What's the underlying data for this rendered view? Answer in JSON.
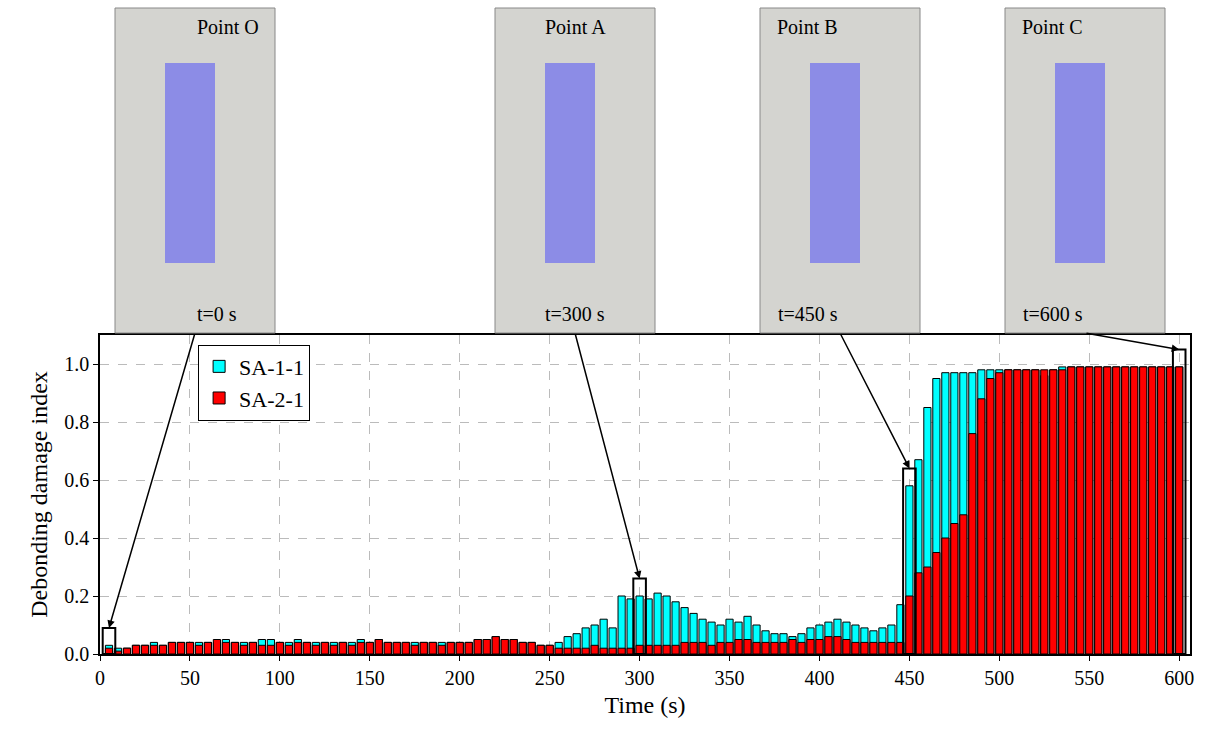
{
  "chart_data": {
    "type": "bar",
    "x_label": "Time (s)",
    "y_label": "Debonding damage index",
    "xlim": [
      0,
      606
    ],
    "ylim": [
      0,
      1.1
    ],
    "xticks": [
      0,
      50,
      100,
      150,
      200,
      250,
      300,
      350,
      400,
      450,
      500,
      550,
      600
    ],
    "yticks": [
      {
        "value": 0,
        "label": "0.0"
      },
      {
        "value": 0.2,
        "label": "0.2"
      },
      {
        "value": 0.4,
        "label": "0.4"
      },
      {
        "value": 0.6,
        "label": "0.6"
      },
      {
        "value": 0.8,
        "label": "0.8"
      },
      {
        "value": 1.0,
        "label": "1.0"
      }
    ],
    "grid": true,
    "legend": "upper left",
    "stacked": false,
    "x": [
      5,
      10,
      15,
      20,
      25,
      30,
      35,
      40,
      45,
      50,
      55,
      60,
      65,
      70,
      75,
      80,
      85,
      90,
      95,
      100,
      105,
      110,
      115,
      120,
      125,
      130,
      135,
      140,
      145,
      150,
      155,
      160,
      165,
      170,
      175,
      180,
      185,
      190,
      195,
      200,
      205,
      210,
      215,
      220,
      225,
      230,
      235,
      240,
      245,
      250,
      255,
      260,
      265,
      270,
      275,
      280,
      285,
      290,
      295,
      300,
      305,
      310,
      315,
      320,
      325,
      330,
      335,
      340,
      345,
      350,
      355,
      360,
      365,
      370,
      375,
      380,
      385,
      390,
      395,
      400,
      405,
      410,
      415,
      420,
      425,
      430,
      435,
      440,
      445,
      450,
      455,
      460,
      465,
      470,
      475,
      480,
      485,
      490,
      495,
      500,
      505,
      510,
      515,
      520,
      525,
      530,
      535,
      540,
      545,
      550,
      555,
      560,
      565,
      570,
      575,
      580,
      585,
      590,
      595,
      600
    ],
    "series": [
      {
        "name": "SA-1-1",
        "color": "#00FFFF",
        "values": [
          0.03,
          0.02,
          0.02,
          0.03,
          0.03,
          0.04,
          0.03,
          0.04,
          0.04,
          0.04,
          0.04,
          0.04,
          0.04,
          0.05,
          0.04,
          0.04,
          0.04,
          0.05,
          0.05,
          0.04,
          0.04,
          0.05,
          0.04,
          0.04,
          0.04,
          0.04,
          0.04,
          0.04,
          0.05,
          0.04,
          0.05,
          0.04,
          0.04,
          0.04,
          0.04,
          0.04,
          0.04,
          0.04,
          0.04,
          0.04,
          0.04,
          0.05,
          0.05,
          0.06,
          0.05,
          0.05,
          0.04,
          0.04,
          0.03,
          0.03,
          0.04,
          0.06,
          0.07,
          0.09,
          0.1,
          0.12,
          0.09,
          0.2,
          0.19,
          0.2,
          0.19,
          0.21,
          0.2,
          0.18,
          0.16,
          0.14,
          0.12,
          0.11,
          0.1,
          0.12,
          0.11,
          0.13,
          0.1,
          0.08,
          0.07,
          0.07,
          0.06,
          0.07,
          0.09,
          0.1,
          0.11,
          0.12,
          0.11,
          0.1,
          0.09,
          0.08,
          0.09,
          0.1,
          0.17,
          0.58,
          0.67,
          0.85,
          0.95,
          0.97,
          0.97,
          0.97,
          0.97,
          0.98,
          0.98,
          0.98,
          0.98,
          0.98,
          0.98,
          0.98,
          0.96,
          0.98,
          0.99,
          0.99,
          0.99,
          0.99,
          0.99,
          0.99,
          0.99,
          0.99,
          0.99,
          0.99,
          0.99,
          0.99,
          0.99,
          0.99
        ]
      },
      {
        "name": "SA-2-1",
        "color": "#FF0000",
        "values": [
          0.02,
          0.01,
          0.02,
          0.03,
          0.03,
          0.03,
          0.03,
          0.04,
          0.04,
          0.04,
          0.03,
          0.04,
          0.05,
          0.04,
          0.04,
          0.03,
          0.04,
          0.03,
          0.03,
          0.04,
          0.03,
          0.04,
          0.04,
          0.03,
          0.04,
          0.03,
          0.04,
          0.03,
          0.04,
          0.04,
          0.05,
          0.04,
          0.04,
          0.04,
          0.03,
          0.04,
          0.04,
          0.03,
          0.04,
          0.04,
          0.04,
          0.05,
          0.05,
          0.06,
          0.05,
          0.05,
          0.04,
          0.04,
          0.03,
          0.03,
          0.02,
          0.02,
          0.02,
          0.02,
          0.03,
          0.02,
          0.02,
          0.02,
          0.02,
          0.03,
          0.03,
          0.03,
          0.03,
          0.03,
          0.04,
          0.04,
          0.04,
          0.03,
          0.04,
          0.04,
          0.05,
          0.05,
          0.04,
          0.04,
          0.04,
          0.04,
          0.05,
          0.04,
          0.05,
          0.05,
          0.06,
          0.06,
          0.05,
          0.04,
          0.04,
          0.04,
          0.04,
          0.04,
          0.04,
          0.2,
          0.28,
          0.3,
          0.35,
          0.4,
          0.45,
          0.48,
          0.76,
          0.88,
          0.95,
          0.97,
          0.98,
          0.98,
          0.98,
          0.98,
          0.98,
          0.98,
          0.98,
          0.99,
          0.99,
          0.99,
          0.99,
          0.99,
          0.99,
          0.99,
          0.99,
          0.99,
          0.99,
          0.99,
          0.99,
          0.99
        ]
      }
    ],
    "annotations": [
      {
        "text": "Point O",
        "subtext": "t=0 s",
        "x": 5
      },
      {
        "text": "Point A",
        "subtext": "t=300 s",
        "x": 300
      },
      {
        "text": "Point B",
        "subtext": "t=450 s",
        "x": 450
      },
      {
        "text": "Point C",
        "subtext": "t=600 s",
        "x": 600
      }
    ]
  }
}
